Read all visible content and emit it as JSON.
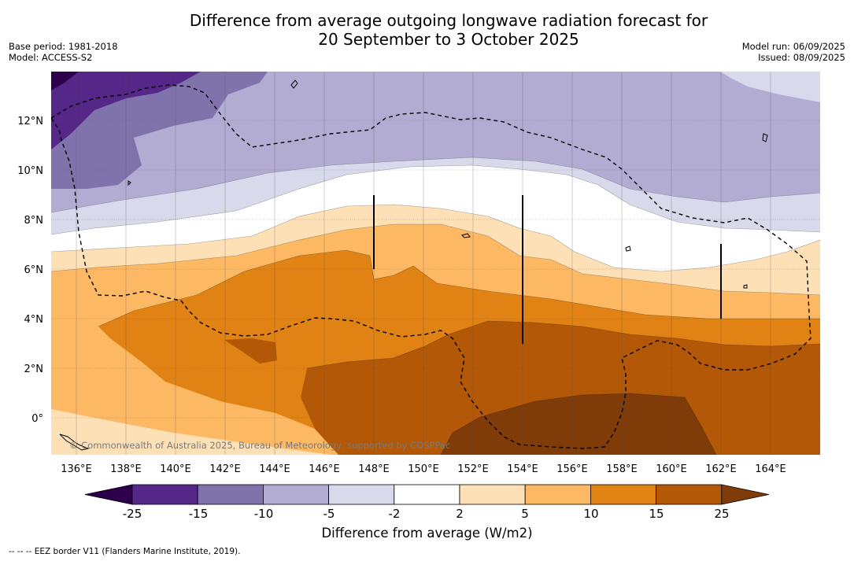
{
  "title": {
    "line1": "Difference from average outgoing longwave radiation forecast for",
    "line2": "20 September to 3 October 2025"
  },
  "meta": {
    "base_period": "Base period: 1981-2018",
    "model": "Model: ACCESS-S2",
    "model_run": "Model run: 06/09/2025",
    "issued": "Issued: 08/09/2025"
  },
  "map": {
    "lon_labels": [
      "136°E",
      "138°E",
      "140°E",
      "142°E",
      "144°E",
      "146°E",
      "148°E",
      "150°E",
      "152°E",
      "154°E",
      "156°E",
      "158°E",
      "160°E",
      "162°E",
      "164°E"
    ],
    "lat_labels": [
      "12°N",
      "10°N",
      "8°N",
      "6°N",
      "4°N",
      "2°N",
      "0°"
    ],
    "copyright": "© Commonwealth of Australia 2025, Bureau of Meteorology, supported by COSPPac"
  },
  "colorbar": {
    "title": "Difference from average (W/m2)",
    "tick_labels": [
      "-25",
      "-15",
      "-10",
      "-5",
      "-2",
      "2",
      "5",
      "10",
      "15",
      "25"
    ],
    "colors": [
      "#2d004b",
      "#542788",
      "#8073ac",
      "#b2abd2",
      "#d8daeb",
      "#ffffff",
      "#fee0b6",
      "#fdb863",
      "#e08214",
      "#b35806",
      "#7f3b08"
    ]
  },
  "footer": {
    "legend": "-- -- -- EEZ border V11 (Flanders Marine Institute, 2019)."
  }
}
